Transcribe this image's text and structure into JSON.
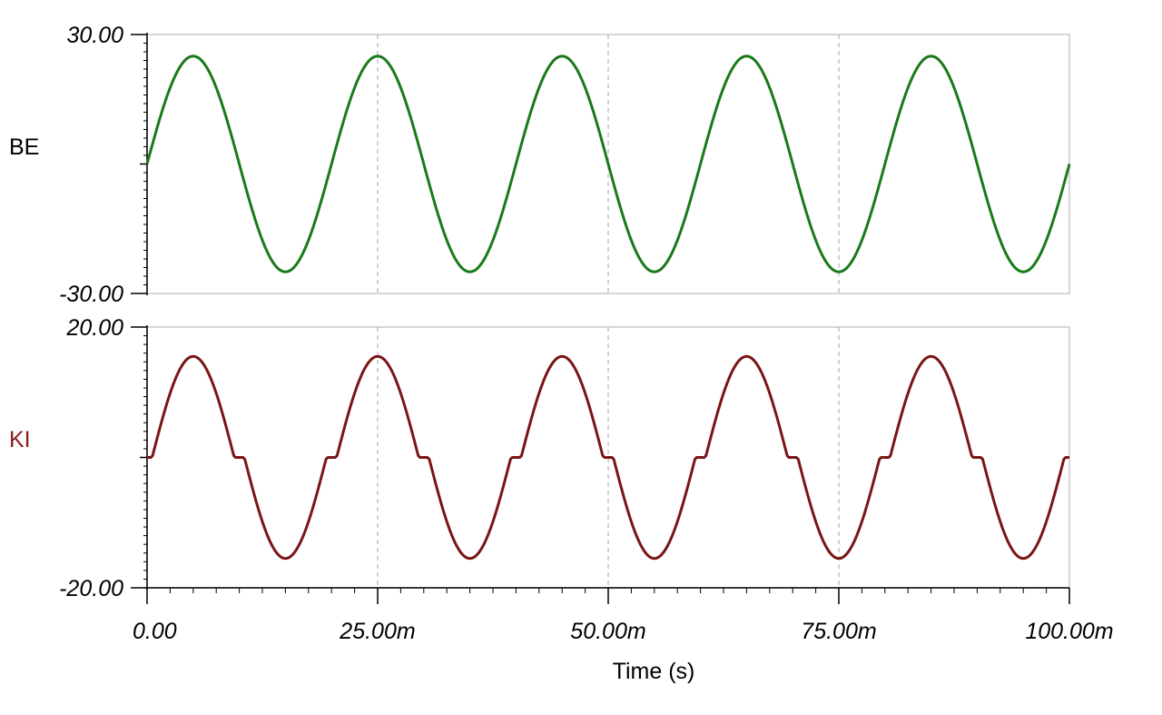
{
  "chart_data": [
    {
      "type": "line",
      "panel": "top",
      "ylabel": "BE",
      "ylim": [
        -30,
        30
      ],
      "ytick_labels": [
        "30.00",
        "-30.00"
      ],
      "xlim": [
        0,
        100
      ],
      "x_unit": "ms",
      "grid": "vertical dashed",
      "series": [
        {
          "color": "#1a7a1a",
          "shape": "sine",
          "amplitude": 25,
          "period": 20,
          "phase_start": 0,
          "x": [
            0,
            5,
            10,
            15,
            20,
            25,
            30,
            35,
            40,
            45,
            50,
            55,
            60,
            65,
            70,
            75,
            80,
            85,
            90,
            95,
            100
          ],
          "values": [
            0,
            25,
            0,
            -25,
            0,
            25,
            0,
            -25,
            0,
            25,
            0,
            -25,
            0,
            25,
            0,
            -25,
            0,
            25,
            0,
            -25,
            0
          ]
        }
      ]
    },
    {
      "type": "line",
      "panel": "bottom",
      "ylabel": "KI",
      "ylim": [
        -20,
        20
      ],
      "ytick_labels": [
        "20.00",
        "-20.00"
      ],
      "xlim": [
        0,
        100
      ],
      "x_unit": "ms",
      "grid": "vertical dashed",
      "xlabel": "Time (s)",
      "xtick_labels": [
        "0.00",
        "25.00m",
        "50.00m",
        "75.00m",
        "100.00m"
      ],
      "xtick_values": [
        0,
        25,
        50,
        75,
        100
      ],
      "series": [
        {
          "color": "#7a1515",
          "shape": "dead-zone sine",
          "amplitude": 15.5,
          "period": 20,
          "x": [
            0,
            1,
            3,
            5,
            7,
            9,
            10,
            11,
            13,
            15,
            17,
            19,
            20
          ],
          "values": [
            0,
            3.2,
            13.6,
            15.5,
            13.6,
            3.2,
            0,
            -3.2,
            -13.6,
            -15.5,
            -13.6,
            -3.2,
            0
          ]
        }
      ]
    }
  ],
  "colors": {
    "be_line": "#1a7a1a",
    "ki_line": "#7a1515",
    "ki_label": "#8b1a1a",
    "axis": "#000000",
    "frame": "#c8c8c8",
    "grid": "#b4b4b4"
  }
}
